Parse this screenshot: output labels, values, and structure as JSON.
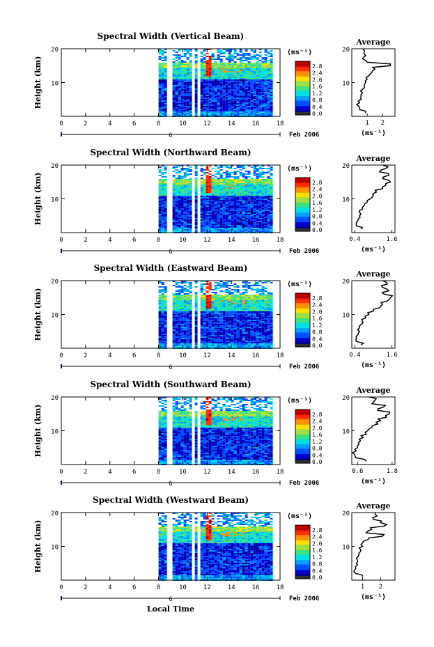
{
  "figure": {
    "bottom_xlabel": "Local Time",
    "date_label": "Feb 2006"
  },
  "colors": {
    "colormap": [
      "#000080",
      "#0000c8",
      "#0050ff",
      "#00a0ff",
      "#00e0e0",
      "#40e080",
      "#a0e040",
      "#ffe000",
      "#ff9000",
      "#ff3000",
      "#c00000"
    ],
    "cbar_bottom_band": "#303030",
    "profile_line": "#000000",
    "background": "#ffffff"
  },
  "chart_data": [
    {
      "type": "heatmap",
      "title": "Spectral Width (Vertical Beam)",
      "xlabel": "",
      "ylabel": "Height (km)",
      "xlim": [
        0,
        18
      ],
      "ylim": [
        0,
        20
      ],
      "xticks": [
        "0",
        "2",
        "4",
        "6",
        "8",
        "10",
        "12",
        "14",
        "16",
        "18"
      ],
      "yticks": [
        "20",
        "10"
      ],
      "day_marker": "6",
      "colorbar": {
        "unit": "(ms⁻¹)",
        "ticks": [
          "2.8",
          "2.4",
          "2.0",
          "1.6",
          "1.2",
          "0.8",
          "0.4",
          "0.0"
        ],
        "range": [
          0,
          3.0
        ]
      },
      "data_x_range": [
        8.0,
        17.3
      ],
      "gaps_x": [
        [
          8.65,
          8.95
        ],
        [
          10.6,
          10.85
        ],
        [
          11.05,
          11.3
        ]
      ],
      "profile": {
        "title": "Average",
        "xlabel": "(ms⁻¹)",
        "xticks": [
          "1",
          "2"
        ],
        "xlim": [
          0,
          2.8
        ],
        "heights": [
          1,
          2,
          3,
          4,
          5,
          6,
          7,
          8,
          9,
          10,
          11,
          12,
          13,
          14,
          15,
          16,
          17,
          18,
          19,
          20
        ],
        "values": [
          0.9,
          0.5,
          0.45,
          0.5,
          0.6,
          0.6,
          0.7,
          0.7,
          0.8,
          0.9,
          1.0,
          1.1,
          1.3,
          1.5,
          2.5,
          1.0,
          0.7,
          0.9,
          0.8,
          0.7
        ]
      }
    },
    {
      "type": "heatmap",
      "title": "Spectral Width (Northward Beam)",
      "xlabel": "",
      "ylabel": "Height (km)",
      "xlim": [
        0,
        18
      ],
      "ylim": [
        0,
        20
      ],
      "xticks": [
        "0",
        "2",
        "4",
        "6",
        "8",
        "10",
        "12",
        "14",
        "16",
        "18"
      ],
      "yticks": [
        "20",
        "10"
      ],
      "day_marker": "6",
      "colorbar": {
        "unit": "(ms⁻¹)",
        "ticks": [
          "2.8",
          "2.4",
          "2.0",
          "1.6",
          "1.2",
          "0.8",
          "0.4",
          "0.0"
        ],
        "range": [
          0,
          3.0
        ]
      },
      "data_x_range": [
        8.0,
        17.3
      ],
      "gaps_x": [
        [
          8.65,
          8.95
        ],
        [
          10.6,
          10.85
        ],
        [
          11.05,
          11.3
        ]
      ],
      "profile": {
        "title": "Average",
        "xlabel": "(ms⁻¹)",
        "xticks": [
          "0.4",
          "1.6"
        ],
        "xlim": [
          0.3,
          1.7
        ],
        "heights": [
          1,
          2,
          3,
          4,
          5,
          6,
          7,
          8,
          9,
          10,
          11,
          12,
          13,
          14,
          15,
          16,
          17,
          18,
          19,
          20
        ],
        "values": [
          0.6,
          0.45,
          0.45,
          0.5,
          0.55,
          0.55,
          0.65,
          0.7,
          0.8,
          0.9,
          1.0,
          1.1,
          1.3,
          1.4,
          1.55,
          1.3,
          1.5,
          1.2,
          1.4,
          1.3
        ]
      }
    },
    {
      "type": "heatmap",
      "title": "Spectral Width (Eastward Beam)",
      "xlabel": "",
      "ylabel": "Height (km)",
      "xlim": [
        0,
        18
      ],
      "ylim": [
        0,
        20
      ],
      "xticks": [
        "0",
        "2",
        "4",
        "6",
        "8",
        "10",
        "12",
        "14",
        "16",
        "18"
      ],
      "yticks": [
        "20",
        "10"
      ],
      "day_marker": "6",
      "colorbar": {
        "unit": "(ms⁻¹)",
        "ticks": [
          "2.8",
          "2.4",
          "2.0",
          "1.6",
          "1.2",
          "0.8",
          "0.4",
          "0.0"
        ],
        "range": [
          0,
          3.0
        ]
      },
      "data_x_range": [
        8.0,
        17.3
      ],
      "gaps_x": [
        [
          8.65,
          8.95
        ],
        [
          10.6,
          10.85
        ],
        [
          11.05,
          11.3
        ]
      ],
      "profile": {
        "title": "Average",
        "xlabel": "(ms⁻¹)",
        "xticks": [
          "0.4",
          "1.6"
        ],
        "xlim": [
          0.3,
          1.7
        ],
        "heights": [
          1,
          2,
          3,
          4,
          5,
          6,
          7,
          8,
          9,
          10,
          11,
          12,
          13,
          14,
          15,
          16,
          17,
          18,
          19,
          20
        ],
        "values": [
          0.6,
          0.45,
          0.45,
          0.5,
          0.55,
          0.55,
          0.6,
          0.65,
          0.75,
          0.85,
          1.0,
          1.2,
          1.3,
          1.45,
          1.55,
          1.35,
          1.5,
          1.3,
          1.45,
          1.3
        ]
      }
    },
    {
      "type": "heatmap",
      "title": "Spectral Width (Southward Beam)",
      "xlabel": "",
      "ylabel": "Height (km)",
      "xlim": [
        0,
        18
      ],
      "ylim": [
        0,
        20
      ],
      "xticks": [
        "0",
        "2",
        "4",
        "6",
        "8",
        "10",
        "12",
        "14",
        "16",
        "18"
      ],
      "yticks": [
        "20",
        "10"
      ],
      "day_marker": "6",
      "colorbar": {
        "unit": "(ms⁻¹)",
        "ticks": [
          "2.8",
          "2.4",
          "2.0",
          "1.6",
          "1.2",
          "0.8",
          "0.4",
          "0.0"
        ],
        "range": [
          0,
          3.0
        ]
      },
      "data_x_range": [
        8.0,
        17.3
      ],
      "gaps_x": [
        [
          8.65,
          8.95
        ],
        [
          10.6,
          10.85
        ],
        [
          11.05,
          11.3
        ]
      ],
      "profile": {
        "title": "Average",
        "xlabel": "(ms⁻¹)",
        "xticks": [
          "0.6",
          "1.8"
        ],
        "xlim": [
          0.4,
          1.9
        ],
        "heights": [
          1,
          2,
          3,
          4,
          5,
          6,
          7,
          8,
          9,
          10,
          11,
          12,
          13,
          14,
          15,
          16,
          17,
          18,
          19,
          20
        ],
        "values": [
          0.9,
          0.55,
          0.5,
          0.55,
          0.6,
          0.65,
          0.7,
          0.8,
          0.9,
          0.95,
          1.1,
          1.3,
          1.4,
          1.6,
          1.7,
          1.3,
          1.5,
          1.1,
          1.2,
          1.0
        ]
      }
    },
    {
      "type": "heatmap",
      "title": "Spectral Width (Westward Beam)",
      "xlabel": "",
      "ylabel": "Height (km)",
      "xlim": [
        0,
        18
      ],
      "ylim": [
        0,
        20
      ],
      "xticks": [
        "0",
        "2",
        "4",
        "6",
        "8",
        "10",
        "12",
        "14",
        "16",
        "18"
      ],
      "yticks": [
        "20",
        "10"
      ],
      "day_marker": "6",
      "colorbar": {
        "unit": "(ms⁻¹)",
        "ticks": [
          "2.8",
          "2.4",
          "2.0",
          "1.6",
          "1.2",
          "0.8",
          "0.4",
          "0.0"
        ],
        "range": [
          0,
          3.0
        ]
      },
      "data_x_range": [
        8.0,
        17.3
      ],
      "gaps_x": [
        [
          8.65,
          8.95
        ],
        [
          10.6,
          10.85
        ],
        [
          11.05,
          11.3
        ]
      ],
      "profile": {
        "title": "Average",
        "xlabel": "(ms⁻¹)",
        "xticks": [
          "1",
          "2"
        ],
        "xlim": [
          0.4,
          2.8
        ],
        "heights": [
          1,
          2,
          3,
          4,
          5,
          6,
          7,
          8,
          9,
          10,
          11,
          12,
          13,
          14,
          15,
          16,
          17,
          18,
          19,
          20
        ],
        "values": [
          1.0,
          0.6,
          0.55,
          0.6,
          0.65,
          0.7,
          0.75,
          0.8,
          0.9,
          1.0,
          1.0,
          1.3,
          2.1,
          1.2,
          1.5,
          2.2,
          2.0,
          1.6,
          1.8,
          1.7
        ]
      }
    }
  ]
}
